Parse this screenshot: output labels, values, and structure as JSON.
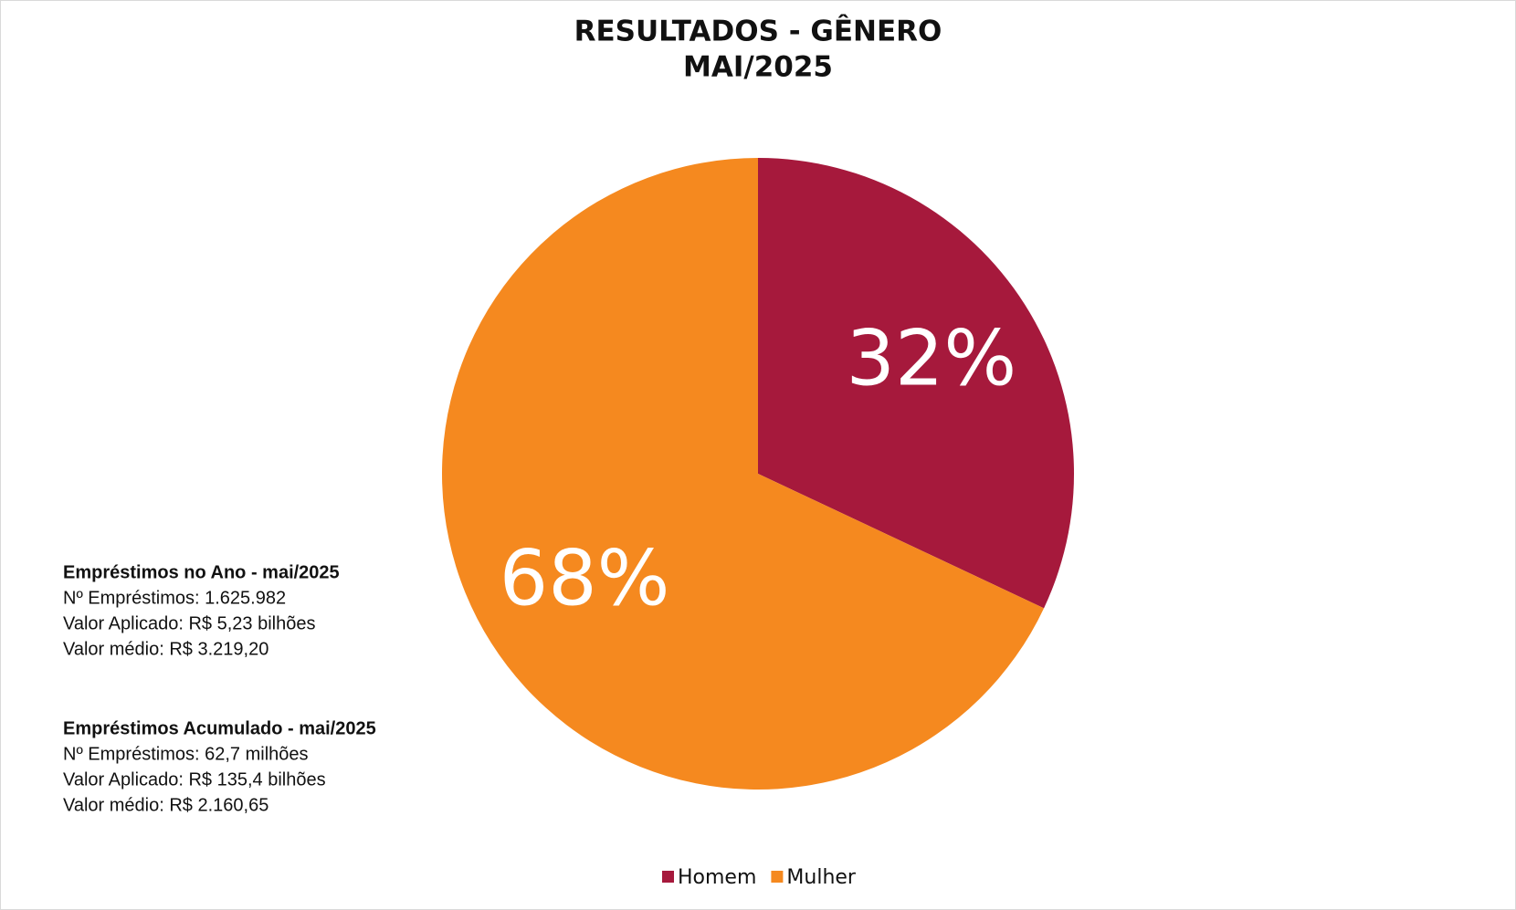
{
  "chart_data": {
    "type": "pie",
    "title": "RESULTADOS - GÊNERO",
    "subtitle": "MAI/2025",
    "categories": [
      "Homem",
      "Mulher"
    ],
    "values": [
      32,
      68
    ],
    "value_labels": [
      "32%",
      "68%"
    ],
    "colors": [
      "#a6193c",
      "#f5891f"
    ],
    "annotations": [
      {
        "heading": "Empréstimos no Ano - mai/2025",
        "lines": [
          "Nº Empréstimos: 1.625.982",
          "Valor Aplicado: R$ 5,23 bilhões",
          "Valor médio: R$ 3.219,20"
        ]
      },
      {
        "heading": "Empréstimos Acumulado - mai/2025",
        "lines": [
          "Nº Empréstimos: 62,7 milhões",
          "Valor Aplicado: R$ 135,4 bilhões",
          "Valor médio: R$ 2.160,65"
        ]
      }
    ]
  }
}
